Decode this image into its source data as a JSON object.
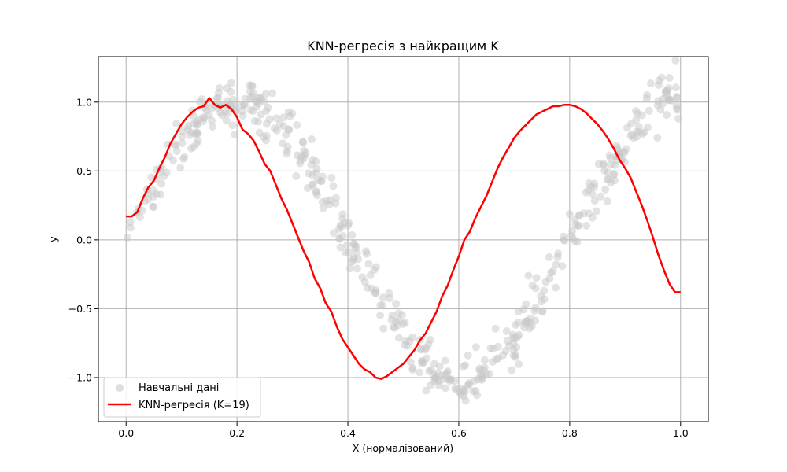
{
  "chart_data": {
    "type": "scatter+line",
    "title": "KNN-регресія з найкращим K",
    "xlabel": "X (нормалізований)",
    "ylabel": "y",
    "xlim": [
      -0.05,
      1.05
    ],
    "ylim": [
      -1.32,
      1.33
    ],
    "xticks": [
      0.0,
      0.2,
      0.4,
      0.6,
      0.8,
      1.0
    ],
    "xtick_labels": [
      "0.0",
      "0.2",
      "0.4",
      "0.6",
      "0.8",
      "1.0"
    ],
    "yticks": [
      -1.0,
      -0.5,
      0.0,
      0.5,
      1.0
    ],
    "ytick_labels": [
      "−1.0",
      "−0.5",
      "0.0",
      "0.5",
      "1.0"
    ],
    "grid": true,
    "legend_position": "lower-left",
    "colors": {
      "scatter": "#c8c8c8",
      "line": "#ff0000",
      "grid": "#b0b0b0"
    },
    "series": [
      {
        "name": "Навчальні дані",
        "kind": "scatter",
        "function": "sin(2*pi*1.25*x)",
        "x_range": [
          0.0,
          1.0
        ],
        "n_points": 500,
        "noise_std": 0.1
      },
      {
        "name": "KNN-регресія (K=19)",
        "kind": "line",
        "x": [
          0.0,
          0.01,
          0.02,
          0.03,
          0.04,
          0.05,
          0.06,
          0.07,
          0.08,
          0.09,
          0.1,
          0.11,
          0.12,
          0.13,
          0.14,
          0.15,
          0.16,
          0.17,
          0.18,
          0.19,
          0.2,
          0.21,
          0.22,
          0.23,
          0.24,
          0.25,
          0.26,
          0.27,
          0.28,
          0.29,
          0.3,
          0.31,
          0.32,
          0.33,
          0.34,
          0.35,
          0.36,
          0.37,
          0.38,
          0.39,
          0.4,
          0.41,
          0.42,
          0.43,
          0.44,
          0.45,
          0.46,
          0.47,
          0.48,
          0.49,
          0.5,
          0.51,
          0.52,
          0.53,
          0.54,
          0.55,
          0.56,
          0.57,
          0.58,
          0.59,
          0.6,
          0.61,
          0.62,
          0.63,
          0.64,
          0.65,
          0.66,
          0.67,
          0.68,
          0.69,
          0.7,
          0.71,
          0.72,
          0.73,
          0.74,
          0.75,
          0.76,
          0.77,
          0.78,
          0.79,
          0.8,
          0.81,
          0.82,
          0.83,
          0.84,
          0.85,
          0.86,
          0.87,
          0.88,
          0.89,
          0.9,
          0.91,
          0.92,
          0.93,
          0.94,
          0.95,
          0.96,
          0.97,
          0.98,
          0.99,
          1.0
        ],
        "y": [
          0.17,
          0.17,
          0.2,
          0.3,
          0.38,
          0.43,
          0.52,
          0.6,
          0.7,
          0.77,
          0.84,
          0.89,
          0.93,
          0.96,
          0.97,
          1.03,
          0.98,
          0.96,
          0.98,
          0.95,
          0.89,
          0.8,
          0.77,
          0.72,
          0.64,
          0.55,
          0.5,
          0.4,
          0.3,
          0.22,
          0.12,
          0.02,
          -0.08,
          -0.16,
          -0.28,
          -0.35,
          -0.46,
          -0.52,
          -0.63,
          -0.72,
          -0.78,
          -0.84,
          -0.9,
          -0.94,
          -0.96,
          -1.0,
          -1.01,
          -0.99,
          -0.96,
          -0.93,
          -0.9,
          -0.85,
          -0.8,
          -0.73,
          -0.68,
          -0.6,
          -0.52,
          -0.41,
          -0.33,
          -0.22,
          -0.12,
          0.0,
          0.06,
          0.16,
          0.24,
          0.32,
          0.42,
          0.52,
          0.6,
          0.67,
          0.74,
          0.79,
          0.83,
          0.87,
          0.91,
          0.93,
          0.95,
          0.97,
          0.97,
          0.98,
          0.98,
          0.97,
          0.95,
          0.92,
          0.88,
          0.84,
          0.79,
          0.73,
          0.66,
          0.58,
          0.52,
          0.45,
          0.35,
          0.25,
          0.14,
          0.02,
          -0.11,
          -0.22,
          -0.32,
          -0.38,
          -0.38
        ]
      }
    ]
  }
}
